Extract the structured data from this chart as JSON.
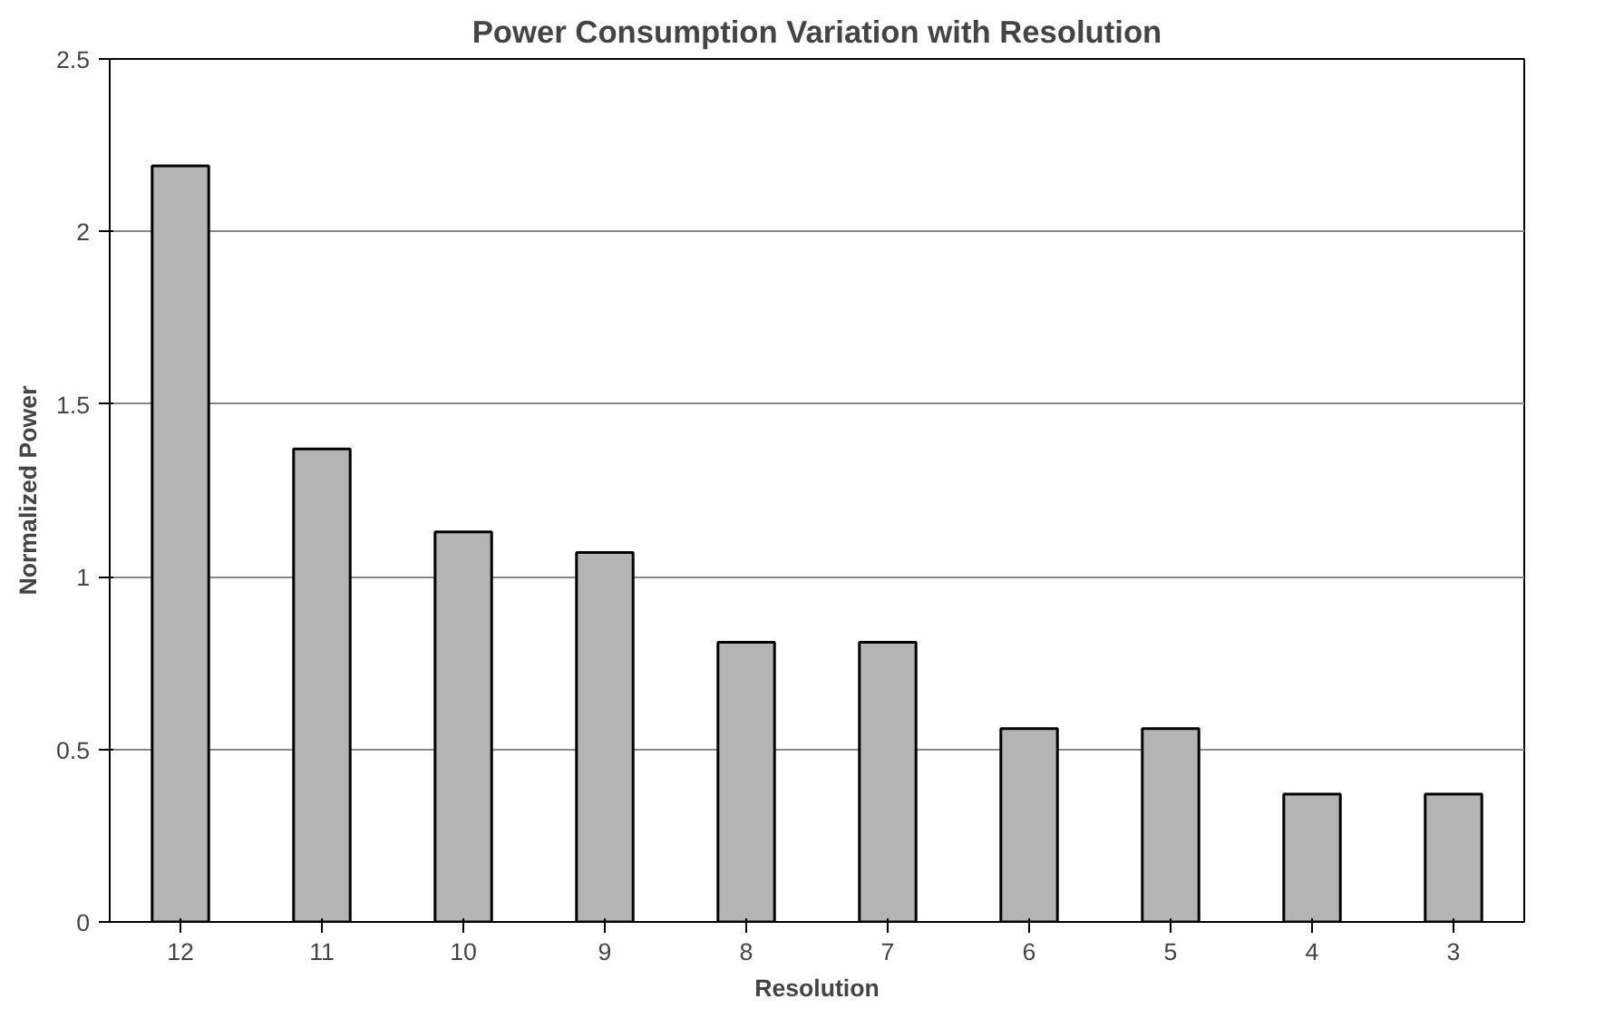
{
  "chart_data": {
    "type": "bar",
    "title": "Power Consumption Variation with Resolution",
    "xlabel": "Resolution",
    "ylabel": "Normalized Power",
    "categories": [
      "12",
      "11",
      "10",
      "9",
      "8",
      "7",
      "6",
      "5",
      "4",
      "3"
    ],
    "values": [
      2.19,
      1.37,
      1.13,
      1.07,
      0.81,
      0.81,
      0.56,
      0.56,
      0.37,
      0.37
    ],
    "color": "#b4b4b4",
    "ylim": [
      0,
      2.5
    ],
    "yticks": [
      0,
      0.5,
      1,
      1.5,
      2,
      2.5
    ],
    "grid": "y"
  }
}
